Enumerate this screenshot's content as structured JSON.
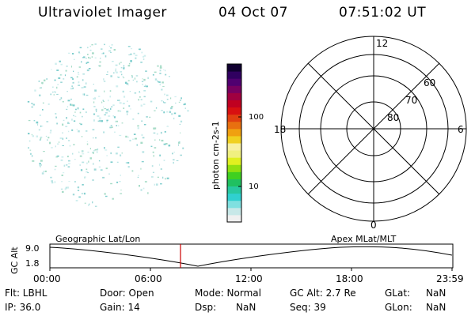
{
  "header": {
    "title": "Ultraviolet Imager",
    "date": "04 Oct 07",
    "time": "07:51:02 UT"
  },
  "colorbar": {
    "label": "photon cm-2s-1",
    "ticks": [
      "100",
      "10"
    ],
    "colors": [
      "#f0f0f0",
      "#c8e8e8",
      "#80e0e0",
      "#30d0d0",
      "#28c8a0",
      "#20c060",
      "#40d020",
      "#90e010",
      "#e0f020",
      "#f0f080",
      "#f8f0a0",
      "#f0d020",
      "#f0a010",
      "#e87010",
      "#e04010",
      "#d81010",
      "#c00020",
      "#a00040",
      "#780060",
      "#500070",
      "#300060",
      "#100030"
    ]
  },
  "polar": {
    "labels": {
      "top": "12",
      "bottom": "0",
      "left": "18",
      "right": "6"
    },
    "lat_labels": [
      "60",
      "70",
      "80"
    ]
  },
  "strip": {
    "ylabel": "GC Alt",
    "y_ticks": [
      "9.0",
      "1.8"
    ],
    "label_left": "Geographic Lat/Lon",
    "label_right": "Apex  MLat/MLT",
    "x_ticks": [
      "00:00",
      "06:00",
      "12:00",
      "18:00",
      "23:59"
    ],
    "marker_color": "#cc0000"
  },
  "info": {
    "row1": {
      "filter": "Flt: LBHL",
      "door": "Door: Open",
      "mode": "Mode: Normal",
      "gcalt": "GC Alt: 2.7 Re",
      "glat_label": "GLat:",
      "glat_value": "NaN"
    },
    "row2": {
      "ip": "IP: 36.0",
      "gain": "Gain: 14",
      "dsp_label": "Dsp:",
      "dsp_value": "NaN",
      "seq": "Seq: 39",
      "glon_label": "GLon:",
      "glon_value": "NaN"
    }
  }
}
